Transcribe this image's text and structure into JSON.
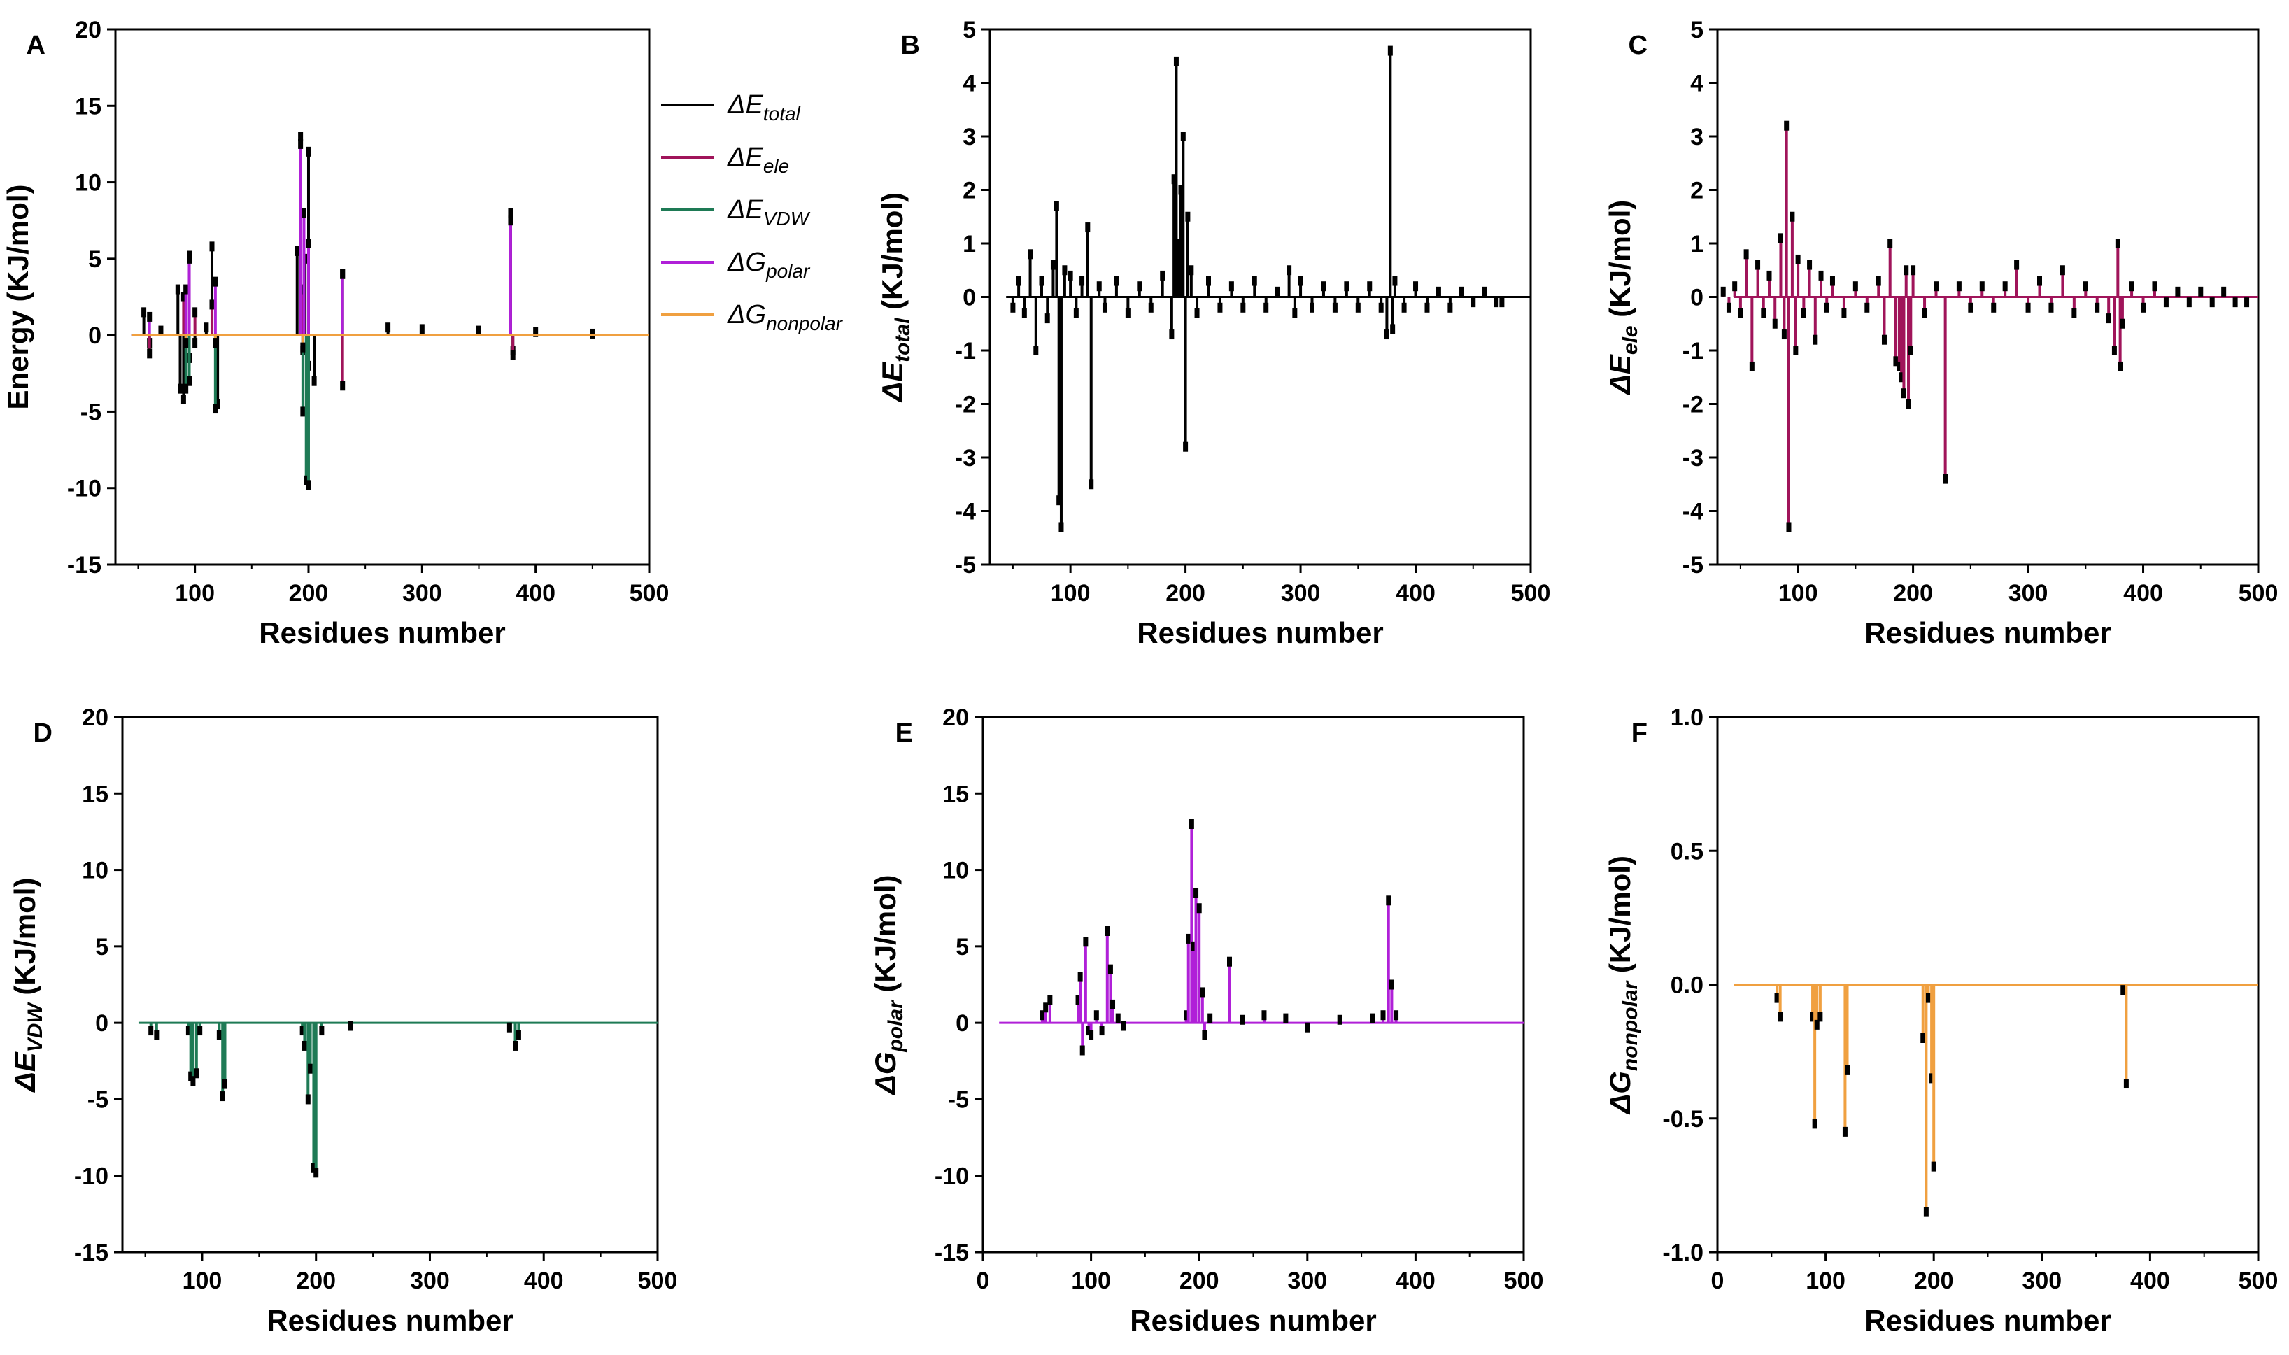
{
  "chart_data": [
    {
      "panel": "A",
      "type": "bar",
      "xlabel": "Residues number",
      "ylabel": "Energy (KJ/mol)",
      "xlim": [
        30,
        500
      ],
      "ylim": [
        -15,
        20
      ],
      "xticks": [
        "100",
        "200",
        "300",
        "400",
        "500"
      ],
      "yticks": [
        "-15",
        "-10",
        "-5",
        "0",
        "5",
        "10",
        "15",
        "20"
      ],
      "legend": [
        {
          "prefix": "ΔE",
          "sub": "total",
          "color": "#000000"
        },
        {
          "prefix": "ΔE",
          "sub": "ele",
          "color": "#a0145a"
        },
        {
          "prefix": "ΔE",
          "sub": "VDW",
          "color": "#1e7a55"
        },
        {
          "prefix": "ΔG",
          "sub": "polar",
          "color": "#b020d8"
        },
        {
          "prefix": "ΔG",
          "sub": "nonpolar",
          "color": "#f0a040"
        }
      ],
      "series": [
        {
          "name": "ΔE total",
          "color": "#000000",
          "x": [
            55,
            60,
            70,
            85,
            87,
            90,
            95,
            100,
            110,
            115,
            120,
            190,
            193,
            195,
            197,
            200,
            205,
            230,
            270,
            300,
            350,
            378,
            380,
            400,
            450
          ],
          "values": [
            1.5,
            -0.5,
            0.3,
            3.0,
            -3.5,
            -4.2,
            5.2,
            -0.5,
            0.5,
            5.8,
            -4.5,
            5.5,
            13.0,
            -1.0,
            5.0,
            12.0,
            -3.0,
            4.0,
            0.5,
            0.4,
            0.3,
            8.0,
            -1.0,
            0.2,
            0.1
          ]
        },
        {
          "name": "ΔE ele",
          "color": "#a0145a",
          "x": [
            60,
            90,
            95,
            100,
            115,
            195,
            200,
            230,
            380
          ],
          "values": [
            -1.2,
            2.5,
            -1.5,
            1.5,
            2.0,
            3.0,
            -2.0,
            -3.3,
            -1.3
          ]
        },
        {
          "name": "ΔE VDW",
          "color": "#1e7a55",
          "x": [
            92,
            95,
            118,
            195,
            198,
            200
          ],
          "values": [
            -3.5,
            -3.0,
            -4.8,
            -5.0,
            -9.5,
            -9.8
          ]
        },
        {
          "name": "ΔG polar",
          "color": "#b020d8",
          "x": [
            60,
            92,
            95,
            118,
            193,
            196,
            200,
            230,
            378
          ],
          "values": [
            1.2,
            3.0,
            5.0,
            3.5,
            12.5,
            8.0,
            6.0,
            4.0,
            7.5
          ]
        },
        {
          "name": "ΔG nonpolar",
          "color": "#f0a040",
          "x": [
            92,
            118,
            195
          ],
          "values": [
            -0.5,
            -0.5,
            -0.8
          ]
        }
      ]
    },
    {
      "panel": "B",
      "type": "bar",
      "xlabel": "Residues number",
      "ylabel_prefix": "ΔE",
      "ylabel_sub": "total",
      "ylabel_suffix": " (KJ/mol)",
      "xlim": [
        30,
        500
      ],
      "ylim": [
        -5,
        5
      ],
      "xticks": [
        "100",
        "200",
        "300",
        "400",
        "500"
      ],
      "yticks": [
        "-5",
        "-4",
        "-3",
        "-2",
        "-1",
        "0",
        "1",
        "2",
        "3",
        "4",
        "5"
      ],
      "series": [
        {
          "name": "ΔE total",
          "color": "#000000",
          "x": [
            50,
            55,
            60,
            65,
            70,
            75,
            80,
            85,
            88,
            90,
            92,
            95,
            100,
            105,
            110,
            115,
            118,
            125,
            130,
            140,
            150,
            160,
            170,
            180,
            188,
            190,
            192,
            194,
            196,
            198,
            200,
            202,
            205,
            210,
            220,
            230,
            240,
            250,
            260,
            270,
            280,
            290,
            295,
            300,
            310,
            320,
            330,
            340,
            350,
            360,
            370,
            375,
            378,
            380,
            382,
            390,
            400,
            410,
            420,
            430,
            440,
            450,
            460,
            470,
            475
          ],
          "values": [
            -0.2,
            0.3,
            -0.3,
            0.8,
            -1.0,
            0.3,
            -0.4,
            0.6,
            1.7,
            -3.8,
            -4.3,
            0.5,
            0.4,
            -0.3,
            0.3,
            1.3,
            -3.5,
            0.2,
            -0.2,
            0.3,
            -0.3,
            0.2,
            -0.2,
            0.4,
            -0.7,
            2.2,
            4.4,
            1.0,
            2.0,
            3.0,
            -2.8,
            1.5,
            0.5,
            -0.3,
            0.3,
            -0.2,
            0.2,
            -0.2,
            0.3,
            -0.2,
            0.1,
            0.5,
            -0.3,
            0.3,
            -0.2,
            0.2,
            -0.2,
            0.2,
            -0.2,
            0.2,
            -0.2,
            -0.7,
            4.6,
            -0.6,
            0.3,
            -0.2,
            0.2,
            -0.2,
            0.1,
            -0.2,
            0.1,
            -0.1,
            0.1,
            -0.1,
            -0.1
          ]
        }
      ]
    },
    {
      "panel": "C",
      "type": "bar",
      "xlabel": "Residues number",
      "ylabel_prefix": "ΔE",
      "ylabel_sub": "ele",
      "ylabel_suffix": " (KJ/mol)",
      "xlim": [
        30,
        500
      ],
      "ylim": [
        -5,
        5
      ],
      "xticks": [
        "100",
        "200",
        "300",
        "400",
        "500"
      ],
      "yticks": [
        "-5",
        "-4",
        "-3",
        "-2",
        "-1",
        "0",
        "1",
        "2",
        "3",
        "4",
        "5"
      ],
      "series": [
        {
          "name": "ΔE ele",
          "color": "#a0145a",
          "x": [
            35,
            40,
            45,
            50,
            55,
            60,
            65,
            70,
            75,
            80,
            85,
            88,
            90,
            92,
            95,
            98,
            100,
            105,
            110,
            115,
            120,
            125,
            130,
            140,
            150,
            160,
            170,
            175,
            180,
            185,
            188,
            190,
            192,
            194,
            196,
            198,
            200,
            210,
            220,
            228,
            240,
            250,
            260,
            270,
            280,
            290,
            300,
            310,
            320,
            330,
            340,
            350,
            360,
            370,
            375,
            378,
            380,
            382,
            390,
            400,
            410,
            420,
            430,
            440,
            450,
            460,
            470,
            480,
            490
          ],
          "values": [
            0.1,
            -0.2,
            0.2,
            -0.3,
            0.8,
            -1.3,
            0.6,
            -0.3,
            0.4,
            -0.5,
            1.1,
            -0.7,
            3.2,
            -4.3,
            1.5,
            -1.0,
            0.7,
            -0.3,
            0.6,
            -0.8,
            0.4,
            -0.2,
            0.3,
            -0.3,
            0.2,
            -0.2,
            0.3,
            -0.8,
            1.0,
            -1.2,
            -1.3,
            -1.5,
            -1.8,
            0.5,
            -2.0,
            -1.0,
            0.5,
            -0.3,
            0.2,
            -3.4,
            0.2,
            -0.2,
            0.2,
            -0.2,
            0.2,
            0.6,
            -0.2,
            0.3,
            -0.2,
            0.5,
            -0.3,
            0.2,
            -0.2,
            -0.4,
            -1.0,
            1.0,
            -1.3,
            -0.5,
            0.2,
            -0.2,
            0.2,
            -0.1,
            0.1,
            -0.1,
            0.1,
            -0.1,
            0.1,
            -0.1,
            -0.1
          ]
        }
      ]
    },
    {
      "panel": "D",
      "type": "bar",
      "xlabel": "Residues number",
      "ylabel_prefix": "ΔE",
      "ylabel_sub": "VDW",
      "ylabel_suffix": " (KJ/mol)",
      "xlim": [
        30,
        500
      ],
      "ylim": [
        -15,
        20
      ],
      "xticks": [
        "100",
        "200",
        "300",
        "400",
        "500"
      ],
      "yticks": [
        "-15",
        "-10",
        "-5",
        "0",
        "5",
        "10",
        "15",
        "20"
      ],
      "series": [
        {
          "name": "ΔE VDW",
          "color": "#1e7a55",
          "x": [
            55,
            60,
            88,
            90,
            92,
            95,
            98,
            115,
            118,
            120,
            188,
            190,
            193,
            195,
            198,
            200,
            205,
            230,
            370,
            375,
            378
          ],
          "values": [
            -0.5,
            -0.8,
            -0.5,
            -3.5,
            -3.8,
            -3.3,
            -0.5,
            -0.8,
            -4.8,
            -4.0,
            -0.5,
            -1.5,
            -5.0,
            -3.0,
            -9.5,
            -9.8,
            -0.5,
            -0.2,
            -0.3,
            -1.5,
            -0.8
          ]
        }
      ]
    },
    {
      "panel": "E",
      "type": "bar",
      "xlabel": "Residues number",
      "ylabel_prefix": "ΔG",
      "ylabel_sub": "polar",
      "ylabel_suffix": " (KJ/mol)",
      "xlim": [
        0,
        500
      ],
      "ylim": [
        -15,
        20
      ],
      "xticks": [
        "0",
        "100",
        "200",
        "300",
        "400",
        "500"
      ],
      "yticks": [
        "-15",
        "-10",
        "-5",
        "0",
        "5",
        "10",
        "15",
        "20"
      ],
      "series": [
        {
          "name": "ΔG polar",
          "color": "#b020d8",
          "x": [
            55,
            58,
            62,
            88,
            90,
            92,
            95,
            98,
            100,
            105,
            110,
            115,
            118,
            120,
            125,
            130,
            188,
            190,
            193,
            195,
            197,
            200,
            203,
            205,
            210,
            228,
            240,
            260,
            280,
            300,
            330,
            360,
            370,
            375,
            378,
            382
          ],
          "values": [
            0.5,
            1.0,
            1.5,
            1.5,
            3.0,
            -1.8,
            5.3,
            -0.5,
            -0.8,
            0.5,
            -0.5,
            6.0,
            3.5,
            1.2,
            0.3,
            -0.2,
            0.5,
            5.5,
            13.0,
            5.0,
            8.5,
            7.5,
            2.0,
            -0.8,
            0.3,
            4.0,
            0.2,
            0.5,
            0.3,
            -0.3,
            0.2,
            0.3,
            0.5,
            8.0,
            2.5,
            0.5
          ]
        }
      ]
    },
    {
      "panel": "F",
      "type": "bar",
      "xlabel": "Residues number",
      "ylabel_prefix": "ΔG",
      "ylabel_sub": "nonpolar",
      "ylabel_suffix": " (KJ/mol)",
      "xlim": [
        0,
        500
      ],
      "ylim": [
        -1.0,
        1.0
      ],
      "xticks": [
        "0",
        "100",
        "200",
        "300",
        "400",
        "500"
      ],
      "yticks": [
        "-1.0",
        "-0.5",
        "0.0",
        "0.5",
        "1.0"
      ],
      "series": [
        {
          "name": "ΔG nonpolar",
          "color": "#f0a040",
          "x": [
            55,
            58,
            88,
            90,
            92,
            95,
            118,
            120,
            190,
            193,
            195,
            198,
            200,
            375,
            378
          ],
          "values": [
            -0.05,
            -0.12,
            -0.12,
            -0.52,
            -0.15,
            -0.12,
            -0.55,
            -0.32,
            -0.2,
            -0.85,
            -0.05,
            -0.35,
            -0.68,
            -0.02,
            -0.37
          ]
        }
      ]
    }
  ]
}
